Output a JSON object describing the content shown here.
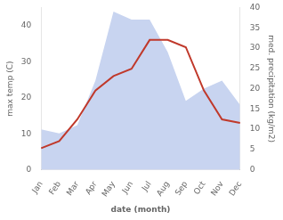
{
  "chart_data": {
    "type": "line",
    "xlabel": "date (month)",
    "ylabel": "max temp (C)",
    "y2label": "med. precipitation (kg/m2)",
    "categories": [
      "Jan",
      "Feb",
      "Mar",
      "Apr",
      "May",
      "Jun",
      "Jul",
      "Aug",
      "Sep",
      "Oct",
      "Nov",
      "Dec"
    ],
    "series": [
      {
        "type": "area",
        "color": "#c8d4f0",
        "axis": "y2",
        "values": [
          10,
          9,
          11,
          22,
          39,
          37,
          37,
          29,
          17,
          20,
          22,
          16
        ]
      },
      {
        "type": "line",
        "color": "#c0392b",
        "values": [
          6,
          8,
          14,
          22,
          26,
          28,
          36,
          36,
          34,
          22,
          14,
          13
        ]
      }
    ],
    "ylim": [
      0,
      45
    ],
    "yticks": [
      0,
      10,
      20,
      30,
      40
    ],
    "y2lim": [
      0,
      40
    ],
    "y2ticks": [
      0,
      5,
      10,
      15,
      20,
      25,
      30,
      35,
      40
    ],
    "grid": false
  }
}
